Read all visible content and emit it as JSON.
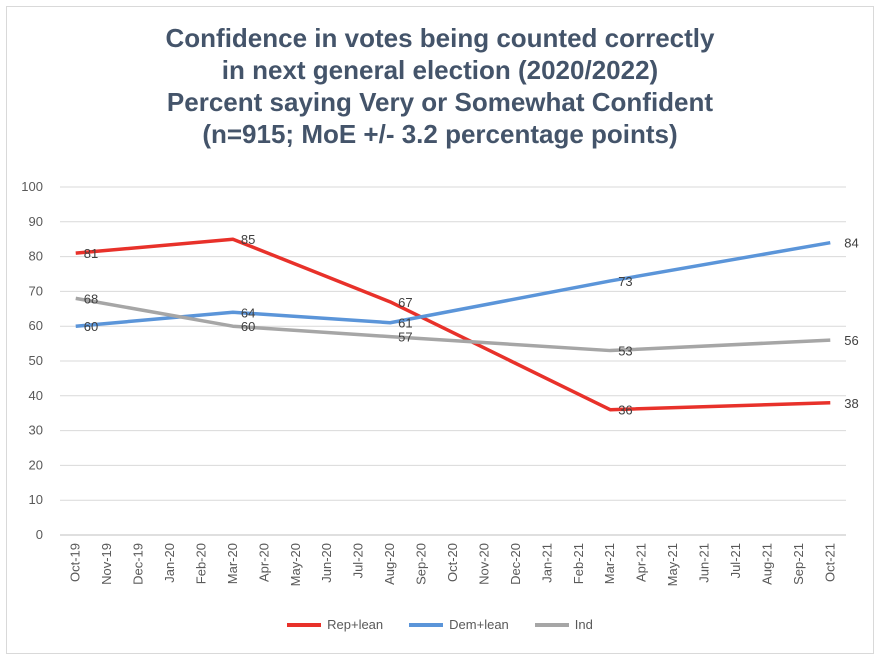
{
  "chart_data": {
    "type": "line",
    "title": [
      "Confidence in votes being counted correctly",
      "in next general election (2020/2022)",
      "Percent saying Very or Somewhat Confident",
      "(n=915; MoE +/- 3.2 percentage points)"
    ],
    "xlabel": "",
    "ylabel": "",
    "ylim": [
      0,
      100
    ],
    "yticks": [
      0,
      10,
      20,
      30,
      40,
      50,
      60,
      70,
      80,
      90,
      100
    ],
    "grid": true,
    "legend": "bottom",
    "categories": [
      "Oct-19",
      "Nov-19",
      "Dec-19",
      "Jan-20",
      "Feb-20",
      "Mar-20",
      "Apr-20",
      "May-20",
      "Jun-20",
      "Jul-20",
      "Aug-20",
      "Sep-20",
      "Oct-20",
      "Nov-20",
      "Dec-20",
      "Jan-21",
      "Feb-21",
      "Mar-21",
      "Apr-21",
      "May-21",
      "Jun-21",
      "Jul-21",
      "Aug-21",
      "Sep-21",
      "Oct-21"
    ],
    "series": [
      {
        "name": "Rep+lean",
        "color": "#e8312a",
        "points": [
          [
            "Oct-19",
            81
          ],
          [
            "Mar-20",
            85
          ],
          [
            "Aug-20",
            67
          ],
          [
            "Mar-21",
            36
          ],
          [
            "Oct-21",
            38
          ]
        ]
      },
      {
        "name": "Dem+lean",
        "color": "#5b95d9",
        "points": [
          [
            "Oct-19",
            60
          ],
          [
            "Mar-20",
            64
          ],
          [
            "Aug-20",
            61
          ],
          [
            "Mar-21",
            73
          ],
          [
            "Oct-21",
            84
          ]
        ]
      },
      {
        "name": "Ind",
        "color": "#a6a6a6",
        "points": [
          [
            "Oct-19",
            68
          ],
          [
            "Mar-20",
            60
          ],
          [
            "Aug-20",
            57
          ],
          [
            "Mar-21",
            53
          ],
          [
            "Oct-21",
            56
          ]
        ]
      }
    ]
  }
}
